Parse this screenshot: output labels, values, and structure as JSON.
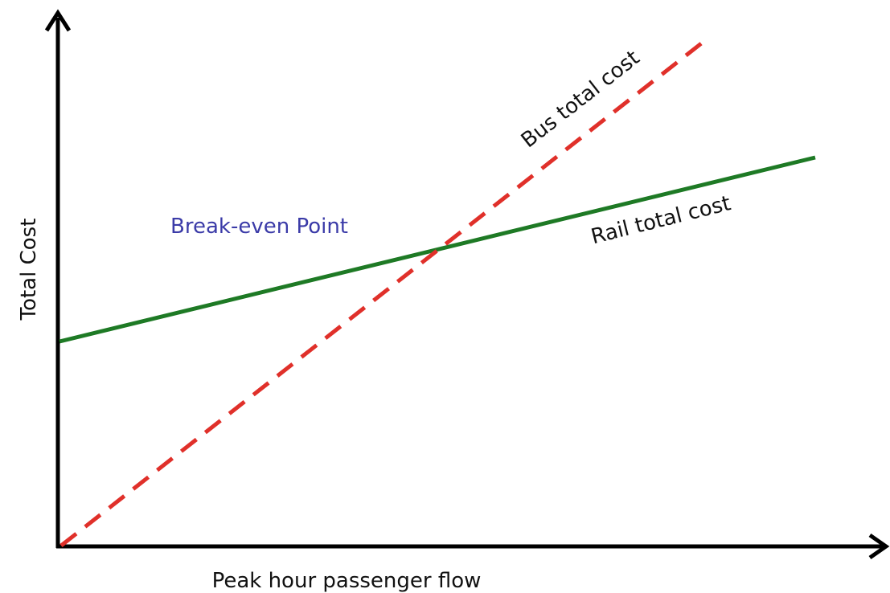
{
  "axes": {
    "x_label": "Peak hour passenger flow",
    "y_label": "Total Cost"
  },
  "lines": [
    {
      "label": "Bus total cost"
    },
    {
      "label": "Rail total cost"
    }
  ],
  "annotation": "Break-even Point"
}
